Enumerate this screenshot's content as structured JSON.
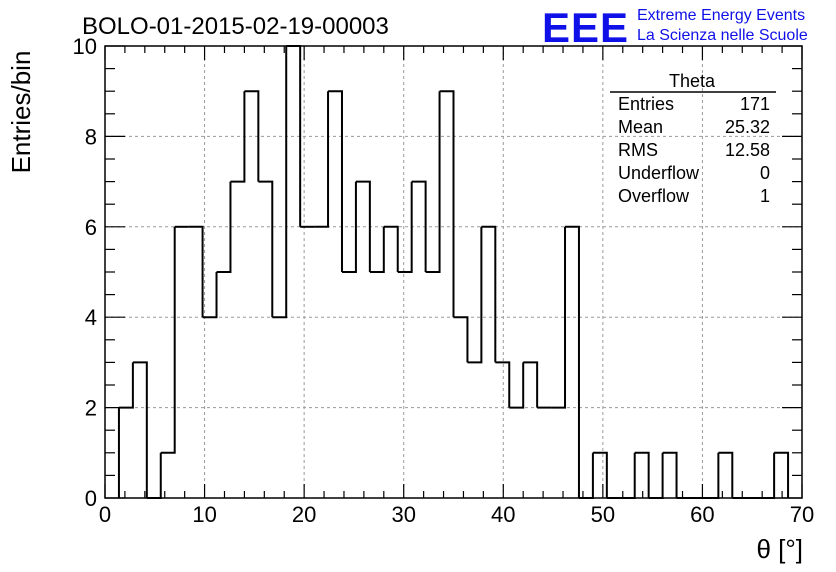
{
  "header": {
    "run_title": "BOLO-01-2015-02-19-00003"
  },
  "logo": {
    "mark": "EEE",
    "line1": "Extreme Energy Events",
    "line2": "La Scienza nelle Scuole",
    "color": "#1010e8"
  },
  "chart_data": {
    "type": "bar",
    "style": "step-histogram",
    "title": "",
    "xlabel": "θ [°]",
    "ylabel": "Entries/bin",
    "xlim": [
      0,
      70
    ],
    "ylim": [
      0,
      10
    ],
    "x_ticks": [
      0,
      10,
      20,
      30,
      40,
      50,
      60,
      70
    ],
    "y_ticks": [
      0,
      2,
      4,
      6,
      8,
      10
    ],
    "grid": true,
    "bin_width": 1.4,
    "bin_edges": [
      1.4,
      2.8,
      4.2,
      5.6,
      7.0,
      8.4,
      9.8,
      11.2,
      12.6,
      14.0,
      15.4,
      16.8,
      18.2,
      19.6,
      21.0,
      22.4,
      23.8,
      25.2,
      26.6,
      28.0,
      29.4,
      30.8,
      32.2,
      33.6,
      35.0,
      36.4,
      37.8,
      39.2,
      40.6,
      42.0,
      43.4,
      44.8,
      46.2,
      47.6,
      49.0,
      50.4,
      51.8,
      53.2,
      54.6,
      56.0,
      57.4,
      58.8,
      60.2,
      61.6,
      63.0,
      64.4,
      65.8,
      67.2,
      68.6
    ],
    "values": [
      2,
      3,
      0,
      1,
      6,
      6,
      4,
      5,
      7,
      9,
      7,
      4,
      10,
      6,
      6,
      9,
      5,
      7,
      5,
      6,
      5,
      7,
      5,
      9,
      4,
      3,
      6,
      3,
      2,
      3,
      2,
      2,
      6,
      0,
      1,
      0,
      0,
      1,
      0,
      1,
      0,
      0,
      0,
      1,
      0,
      0,
      0,
      1
    ],
    "stats_box": {
      "title": "Theta",
      "rows": [
        {
          "label": "Entries",
          "value": "171"
        },
        {
          "label": "Mean",
          "value": "25.32"
        },
        {
          "label": "RMS",
          "value": "12.58"
        },
        {
          "label": "Underflow",
          "value": "0"
        },
        {
          "label": "Overflow",
          "value": "1"
        }
      ]
    }
  }
}
